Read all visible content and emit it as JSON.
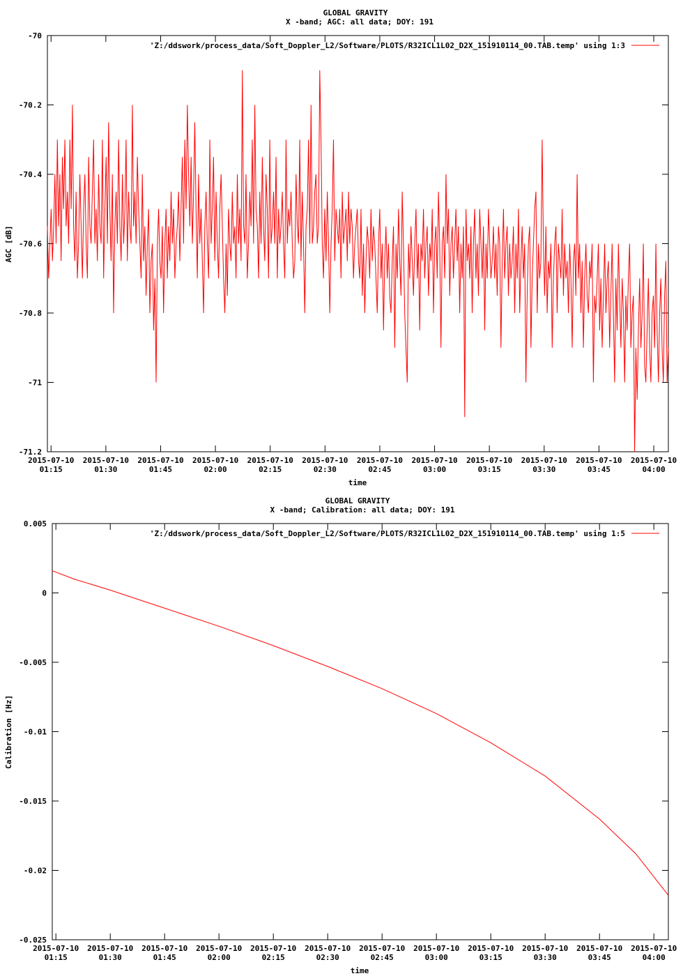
{
  "chart_data": [
    {
      "type": "line",
      "title": "GLOBAL GRAVITY",
      "subtitle": "X -band; AGC: all data; DOY: 191",
      "xlabel": "time",
      "ylabel": "AGC [dB]",
      "legend": "'Z:/ddswork/process_data/Soft_Doppler_L2/Software/PLOTS/R32ICL1L02_D2X_151910114_00.TAB.temp' using 1:3",
      "legend_position": "top-right",
      "series_color": "#ff0000",
      "xlim": [
        "2015-07-10 01:14",
        "2015-07-10 04:04"
      ],
      "ylim": [
        -71.2,
        -70
      ],
      "yticks": [
        -70,
        -70.2,
        -70.4,
        -70.6,
        -70.8,
        -71,
        -71.2
      ],
      "ytick_labels": [
        "-70",
        "-70.2",
        "-70.4",
        "-70.6",
        "-70.8",
        "-71",
        "-71.2"
      ],
      "xticks": [
        "2015-07-10 01:15",
        "2015-07-10 01:30",
        "2015-07-10 01:45",
        "2015-07-10 02:00",
        "2015-07-10 02:15",
        "2015-07-10 02:30",
        "2015-07-10 02:45",
        "2015-07-10 03:00",
        "2015-07-10 03:15",
        "2015-07-10 03:30",
        "2015-07-10 03:45",
        "2015-07-10 04:00"
      ],
      "xtick_labels_line1": [
        "2015-07-10",
        "2015-07-10",
        "2015-07-10",
        "2015-07-10",
        "2015-07-10",
        "2015-07-10",
        "2015-07-10",
        "2015-07-10",
        "2015-07-10",
        "2015-07-10",
        "2015-07-10",
        "2015-07-10"
      ],
      "xtick_labels_line2": [
        "01:15",
        "01:30",
        "01:45",
        "02:00",
        "02:15",
        "02:30",
        "02:45",
        "03:00",
        "03:15",
        "03:30",
        "03:45",
        "04:00"
      ],
      "series": [
        {
          "x_start": "2015-07-10 01:14",
          "x_end": "2015-07-10 04:04",
          "values": [
            -70.55,
            -70.7,
            -70.6,
            -70.5,
            -70.65,
            -70.55,
            -70.4,
            -70.6,
            -70.3,
            -70.55,
            -70.4,
            -70.65,
            -70.35,
            -70.5,
            -70.3,
            -70.55,
            -70.45,
            -70.6,
            -70.3,
            -70.5,
            -70.2,
            -70.55,
            -70.65,
            -70.45,
            -70.7,
            -70.6,
            -70.4,
            -70.55,
            -70.7,
            -70.5,
            -70.4,
            -70.6,
            -70.7,
            -70.35,
            -70.55,
            -70.6,
            -70.45,
            -70.3,
            -70.6,
            -70.5,
            -70.65,
            -70.4,
            -70.55,
            -70.6,
            -70.3,
            -70.7,
            -70.5,
            -70.35,
            -70.6,
            -70.25,
            -70.5,
            -70.65,
            -70.4,
            -70.8,
            -70.55,
            -70.45,
            -70.6,
            -70.3,
            -70.55,
            -70.65,
            -70.4,
            -70.6,
            -70.5,
            -70.3,
            -70.65,
            -70.45,
            -70.55,
            -70.6,
            -70.2,
            -70.55,
            -70.45,
            -70.6,
            -70.35,
            -70.5,
            -70.6,
            -70.7,
            -70.4,
            -70.65,
            -70.55,
            -70.75,
            -70.6,
            -70.5,
            -70.8,
            -70.65,
            -70.6,
            -70.85,
            -70.7,
            -71.0,
            -70.6,
            -70.5,
            -70.65,
            -70.7,
            -70.55,
            -70.8,
            -70.6,
            -70.5,
            -70.7,
            -70.55,
            -70.65,
            -70.45,
            -70.6,
            -70.5,
            -70.7,
            -70.6,
            -70.55,
            -70.45,
            -70.65,
            -70.5,
            -70.35,
            -70.6,
            -70.3,
            -70.5,
            -70.2,
            -70.4,
            -70.55,
            -70.35,
            -70.6,
            -70.45,
            -70.25,
            -70.5,
            -70.7,
            -70.4,
            -70.6,
            -70.5,
            -70.65,
            -70.8,
            -70.55,
            -70.45,
            -70.6,
            -70.7,
            -70.3,
            -70.6,
            -70.5,
            -70.35,
            -70.65,
            -70.45,
            -70.6,
            -70.7,
            -70.5,
            -70.4,
            -70.55,
            -70.7,
            -70.8,
            -70.6,
            -70.75,
            -70.5,
            -70.6,
            -70.65,
            -70.45,
            -70.6,
            -70.55,
            -70.7,
            -70.4,
            -70.6,
            -70.5,
            -70.65,
            -70.1,
            -70.55,
            -70.6,
            -70.4,
            -70.7,
            -70.6,
            -70.45,
            -70.55,
            -70.3,
            -70.6,
            -70.2,
            -70.5,
            -70.55,
            -70.7,
            -70.45,
            -70.6,
            -70.35,
            -70.55,
            -70.65,
            -70.4,
            -70.5,
            -70.7,
            -70.3,
            -70.6,
            -70.55,
            -70.45,
            -70.6,
            -70.35,
            -70.7,
            -70.5,
            -70.6,
            -70.55,
            -70.45,
            -70.6,
            -70.7,
            -70.3,
            -70.6,
            -70.5,
            -70.55,
            -70.45,
            -70.6,
            -70.7,
            -70.65,
            -70.4,
            -70.55,
            -70.6,
            -70.3,
            -70.65,
            -70.45,
            -70.6,
            -70.8,
            -70.55,
            -70.5,
            -70.3,
            -70.6,
            -70.2,
            -70.6,
            -70.55,
            -70.45,
            -70.4,
            -70.6,
            -70.55,
            -70.1,
            -70.3,
            -70.6,
            -70.7,
            -70.5,
            -70.65,
            -70.45,
            -70.6,
            -70.8,
            -70.6,
            -70.5,
            -70.3,
            -70.65,
            -70.5,
            -70.55,
            -70.6,
            -70.5,
            -70.7,
            -70.45,
            -70.6,
            -70.55,
            -70.5,
            -70.65,
            -70.45,
            -70.6,
            -70.5,
            -70.55,
            -70.7,
            -70.6,
            -70.55,
            -70.5,
            -70.65,
            -70.7,
            -70.5,
            -70.75,
            -70.6,
            -70.8,
            -70.65,
            -70.55,
            -70.6,
            -70.7,
            -70.5,
            -70.65,
            -70.55,
            -70.6,
            -70.7,
            -70.8,
            -70.6,
            -70.5,
            -70.7,
            -70.6,
            -70.85,
            -70.65,
            -70.55,
            -70.7,
            -70.6,
            -70.75,
            -70.8,
            -70.65,
            -70.55,
            -70.9,
            -70.6,
            -70.7,
            -70.5,
            -70.65,
            -70.75,
            -70.45,
            -70.6,
            -70.8,
            -70.9,
            -71.0,
            -70.6,
            -70.7,
            -70.55,
            -70.65,
            -70.75,
            -70.6,
            -70.5,
            -70.7,
            -70.6,
            -70.85,
            -70.6,
            -70.65,
            -70.5,
            -70.7,
            -70.6,
            -70.55,
            -70.75,
            -70.6,
            -70.65,
            -70.5,
            -70.8,
            -70.6,
            -70.55,
            -70.7,
            -70.45,
            -70.6,
            -70.9,
            -70.6,
            -70.55,
            -70.7,
            -70.4,
            -70.6,
            -70.5,
            -70.75,
            -70.6,
            -70.55,
            -70.7,
            -70.6,
            -70.5,
            -70.65,
            -70.55,
            -70.8,
            -70.6,
            -70.7,
            -70.55,
            -71.1,
            -70.5,
            -70.65,
            -70.6,
            -70.7,
            -70.55,
            -70.8,
            -70.6,
            -70.5,
            -70.7,
            -70.6,
            -70.75,
            -70.5,
            -70.6,
            -70.7,
            -70.55,
            -70.85,
            -70.6,
            -70.7,
            -70.5,
            -70.6,
            -70.7,
            -70.65,
            -70.55,
            -70.7,
            -70.6,
            -70.75,
            -70.55,
            -70.6,
            -70.9,
            -70.65,
            -70.5,
            -70.7,
            -70.6,
            -70.55,
            -70.75,
            -70.6,
            -70.7,
            -70.65,
            -70.55,
            -70.8,
            -70.6,
            -70.7,
            -70.5,
            -70.8,
            -70.65,
            -70.55,
            -70.7,
            -70.6,
            -71.0,
            -70.75,
            -70.6,
            -70.55,
            -70.9,
            -70.7,
            -70.6,
            -70.5,
            -70.45,
            -70.8,
            -70.6,
            -70.7,
            -70.65,
            -70.3,
            -70.6,
            -70.75,
            -70.55,
            -70.8,
            -70.65,
            -70.7,
            -70.6,
            -70.9,
            -70.7,
            -70.6,
            -70.55,
            -70.8,
            -70.6,
            -70.65,
            -70.7,
            -70.5,
            -70.75,
            -70.6,
            -70.7,
            -70.65,
            -70.8,
            -70.6,
            -70.7,
            -70.9,
            -70.65,
            -70.6,
            -70.75,
            -70.4,
            -70.7,
            -70.6,
            -70.8,
            -70.65,
            -70.9,
            -70.7,
            -70.6,
            -70.75,
            -70.8,
            -70.65,
            -70.7,
            -70.6,
            -71.0,
            -70.75,
            -70.8,
            -70.7,
            -70.6,
            -70.85,
            -70.7,
            -70.9,
            -70.75,
            -70.6,
            -70.8,
            -70.7,
            -70.65,
            -70.9,
            -70.75,
            -70.6,
            -70.8,
            -71.0,
            -70.7,
            -70.85,
            -70.6,
            -70.75,
            -70.9,
            -70.7,
            -70.8,
            -71.0,
            -70.75,
            -70.85,
            -70.7,
            -70.6,
            -70.9,
            -70.8,
            -70.75,
            -71.2,
            -70.9,
            -71.05,
            -70.85,
            -70.7,
            -70.9,
            -70.8,
            -70.6,
            -70.95,
            -71.0,
            -70.85,
            -70.7,
            -70.9,
            -71.0,
            -70.8,
            -70.75,
            -70.9,
            -70.6,
            -70.85,
            -71.0,
            -70.8,
            -70.7,
            -70.9,
            -71.0,
            -70.75,
            -70.65,
            -71.0,
            -70.9
          ]
        }
      ]
    },
    {
      "type": "line",
      "title": "GLOBAL GRAVITY",
      "subtitle": "X -band; Calibration: all data; DOY: 191",
      "xlabel": "time",
      "ylabel": "Calibration [Hz]",
      "legend": "'Z:/ddswork/process_data/Soft_Doppler_L2/Software/PLOTS/R32ICL1L02_D2X_151910114_00.TAB.temp' using 1:5",
      "legend_position": "top-right",
      "series_color": "#ff0000",
      "xlim": [
        "2015-07-10 01:14",
        "2015-07-10 04:04"
      ],
      "ylim": [
        -0.025,
        0.005
      ],
      "yticks": [
        0.005,
        0,
        -0.005,
        -0.01,
        -0.015,
        -0.02,
        -0.025
      ],
      "ytick_labels": [
        "0.005",
        "0",
        "-0.005",
        "-0.01",
        "-0.015",
        "-0.02",
        "-0.025"
      ],
      "xticks": [
        "2015-07-10 01:15",
        "2015-07-10 01:30",
        "2015-07-10 01:45",
        "2015-07-10 02:00",
        "2015-07-10 02:15",
        "2015-07-10 02:30",
        "2015-07-10 02:45",
        "2015-07-10 03:00",
        "2015-07-10 03:15",
        "2015-07-10 03:30",
        "2015-07-10 03:45",
        "2015-07-10 04:00"
      ],
      "xtick_labels_line1": [
        "2015-07-10",
        "2015-07-10",
        "2015-07-10",
        "2015-07-10",
        "2015-07-10",
        "2015-07-10",
        "2015-07-10",
        "2015-07-10",
        "2015-07-10",
        "2015-07-10",
        "2015-07-10",
        "2015-07-10"
      ],
      "xtick_labels_line2": [
        "01:15",
        "01:30",
        "01:45",
        "02:00",
        "02:15",
        "02:30",
        "02:45",
        "03:00",
        "03:15",
        "03:30",
        "03:45",
        "04:00"
      ],
      "series": [
        {
          "x": [
            "2015-07-10 01:14",
            "2015-07-10 01:20",
            "2015-07-10 01:30",
            "2015-07-10 01:45",
            "2015-07-10 02:00",
            "2015-07-10 02:15",
            "2015-07-10 02:30",
            "2015-07-10 02:45",
            "2015-07-10 03:00",
            "2015-07-10 03:15",
            "2015-07-10 03:30",
            "2015-07-10 03:45",
            "2015-07-10 03:55",
            "2015-07-10 04:04"
          ],
          "values": [
            0.0016,
            0.001,
            0.0002,
            -0.0011,
            -0.0024,
            -0.0038,
            -0.0053,
            -0.0069,
            -0.0087,
            -0.0108,
            -0.0132,
            -0.0163,
            -0.0188,
            -0.0218
          ]
        }
      ]
    }
  ]
}
